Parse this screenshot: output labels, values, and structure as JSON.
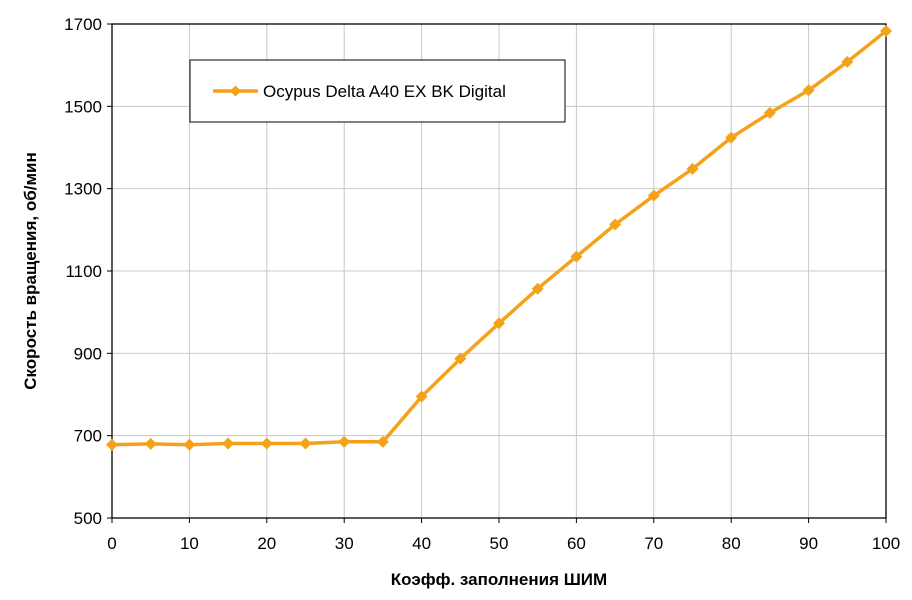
{
  "chart_data": {
    "type": "line",
    "xlabel": "Коэфф. заполнения ШИМ",
    "ylabel": "Скорость вращения, об/мин",
    "xlim": [
      0,
      100
    ],
    "ylim": [
      500,
      1700
    ],
    "x_ticks": [
      0,
      10,
      20,
      30,
      40,
      50,
      60,
      70,
      80,
      90,
      100
    ],
    "x_tick_labels": [
      "0",
      "10",
      "20",
      "30",
      "40",
      "50",
      "60",
      "70",
      "80",
      "90",
      "100"
    ],
    "y_ticks": [
      500,
      700,
      900,
      1100,
      1300,
      1500,
      1700
    ],
    "y_tick_labels": [
      "500",
      "700",
      "900",
      "1100",
      "1300",
      "1500",
      "1700"
    ],
    "grid": true,
    "legend_position": "top-left",
    "series": [
      {
        "name": "Ocypus Delta A40 EX BK Digital",
        "color": "#f5a21b",
        "marker": "diamond",
        "x": [
          0,
          5,
          10,
          15,
          20,
          25,
          30,
          35,
          40,
          45,
          50,
          55,
          60,
          65,
          70,
          75,
          80,
          85,
          90,
          95,
          100
        ],
        "y": [
          678,
          680,
          678,
          681,
          681,
          681,
          685,
          685,
          795,
          887,
          973,
          1057,
          1135,
          1213,
          1283,
          1348,
          1424,
          1484,
          1539,
          1608,
          1683
        ]
      }
    ]
  }
}
